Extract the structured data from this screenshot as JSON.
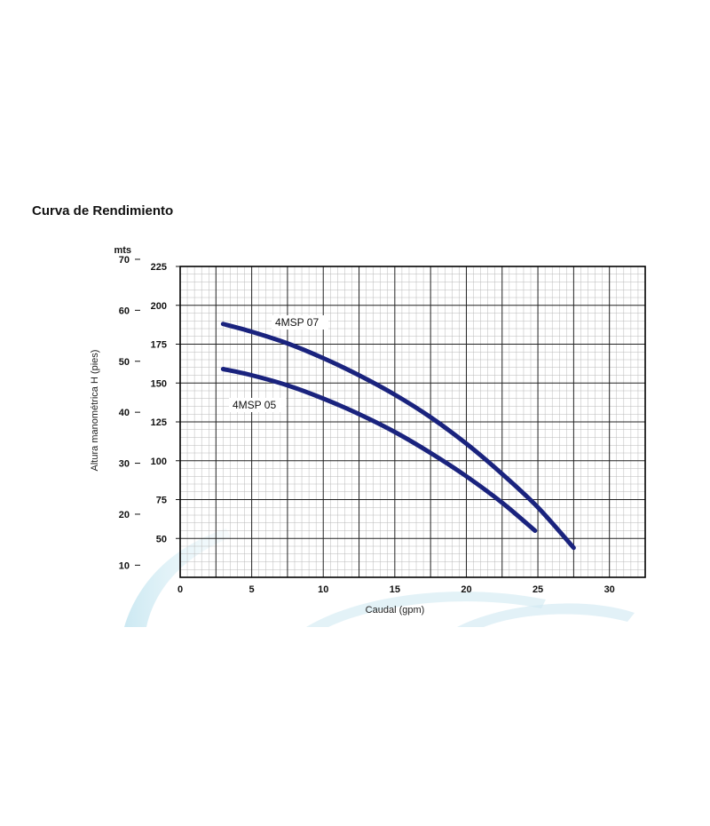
{
  "page": {
    "title": "Curva de Rendimiento"
  },
  "chart_data": {
    "type": "line",
    "xlabel": "Caudal (gpm)",
    "ylabel": "Altura manométrica H (pies)",
    "y2_unit": "mts",
    "xlim": [
      0,
      32.5
    ],
    "ylim": [
      25,
      225
    ],
    "x_ticks": [
      0,
      5,
      10,
      15,
      20,
      25,
      30
    ],
    "y_ticks": [
      50,
      75,
      100,
      125,
      150,
      175,
      200,
      225
    ],
    "y2_ticks": [
      10,
      20,
      30,
      40,
      50,
      60,
      70
    ],
    "grid": true,
    "series": [
      {
        "name": "4MSP 07",
        "color": "#1a237e",
        "x": [
          3,
          5,
          7.5,
          10,
          12.5,
          15,
          17.5,
          20,
          22.5,
          25,
          27.5
        ],
        "y": [
          188,
          183,
          175.5,
          166,
          155,
          142.5,
          128,
          111,
          91.5,
          70,
          44
        ]
      },
      {
        "name": "4MSP 05",
        "color": "#1a237e",
        "x": [
          3,
          5,
          7.5,
          10,
          12.5,
          15,
          17.5,
          20,
          22.5,
          24.8
        ],
        "y": [
          159,
          155,
          148.5,
          140,
          130,
          118.5,
          105,
          90,
          73,
          55
        ]
      }
    ]
  }
}
